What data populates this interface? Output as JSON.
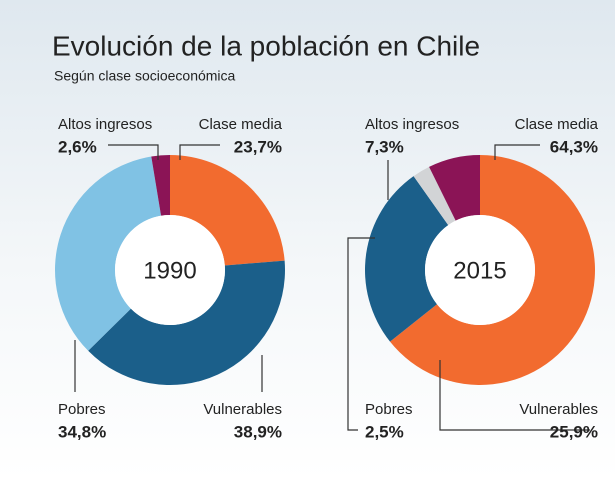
{
  "header": {
    "title": "Evolución de la población en Chile",
    "subtitle": "Según clase socioeconómica"
  },
  "chart_data": [
    {
      "type": "pie",
      "center_label": "1990",
      "categories": [
        "Clase media",
        "Vulnerables",
        "Pobres",
        "Altos ingresos"
      ],
      "values": [
        23.7,
        38.9,
        34.8,
        2.6
      ],
      "value_labels": [
        "23,7%",
        "38,9%",
        "34,8%",
        "2,6%"
      ],
      "colors": [
        "#f26b2f",
        "#1b5f8a",
        "#80c2e4",
        "#8b1456"
      ]
    },
    {
      "type": "pie",
      "center_label": "2015",
      "categories": [
        "Clase media",
        "Vulnerables",
        "Pobres",
        "Altos ingresos"
      ],
      "values": [
        64.3,
        25.9,
        2.5,
        7.3
      ],
      "value_labels": [
        "64,3%",
        "25,9%",
        "2,5%",
        "7,3%"
      ],
      "colors": [
        "#f26b2f",
        "#1b5f8a",
        "#d2d4d6",
        "#8b1456"
      ]
    }
  ]
}
